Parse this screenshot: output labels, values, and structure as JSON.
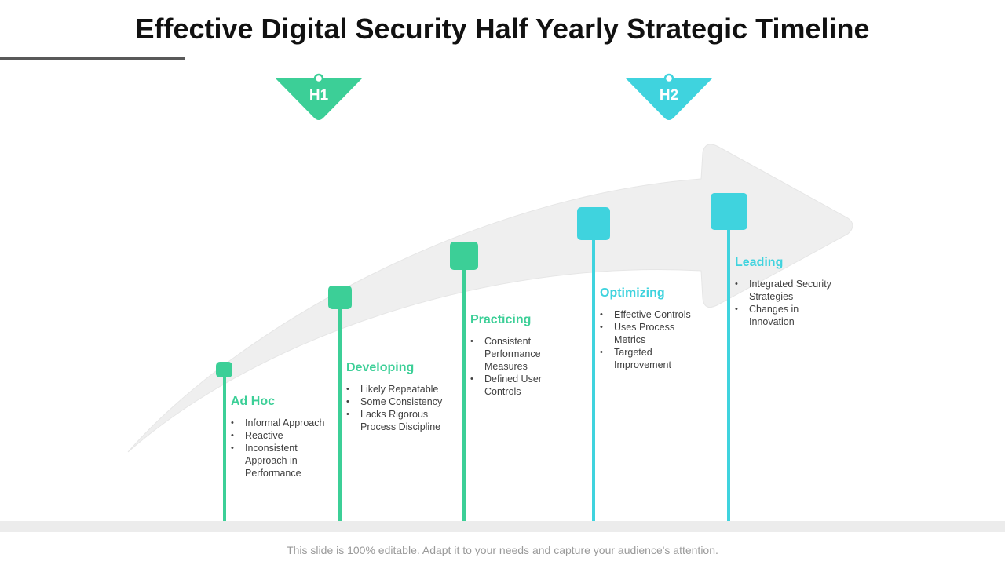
{
  "title": "Effective Digital Security Half Yearly Strategic Timeline",
  "halves": [
    {
      "label": "H1",
      "color": "#3ccf97"
    },
    {
      "label": "H2",
      "color": "#3fd3de"
    }
  ],
  "stages": [
    {
      "title": "Ad Hoc",
      "color": "#3ccf97",
      "items": [
        "Informal Approach",
        "Reactive",
        "Inconsistent Approach in Performance"
      ]
    },
    {
      "title": "Developing",
      "color": "#3ccf97",
      "items": [
        "Likely Repeatable",
        "Some Consistency",
        "Lacks Rigorous Process Discipline"
      ]
    },
    {
      "title": "Practicing",
      "color": "#3ccf97",
      "items": [
        "Consistent Performance Measures",
        "Defined User Controls"
      ]
    },
    {
      "title": "Optimizing",
      "color": "#3fd3de",
      "items": [
        "Effective Controls",
        "Uses Process Metrics",
        "Targeted Improvement"
      ]
    },
    {
      "title": "Leading",
      "color": "#3fd3de",
      "items": [
        "Integrated Security Strategies",
        "Changes in Innovation"
      ]
    }
  ],
  "footer": "This slide is 100% editable. Adapt it to your needs and capture your audience's attention."
}
